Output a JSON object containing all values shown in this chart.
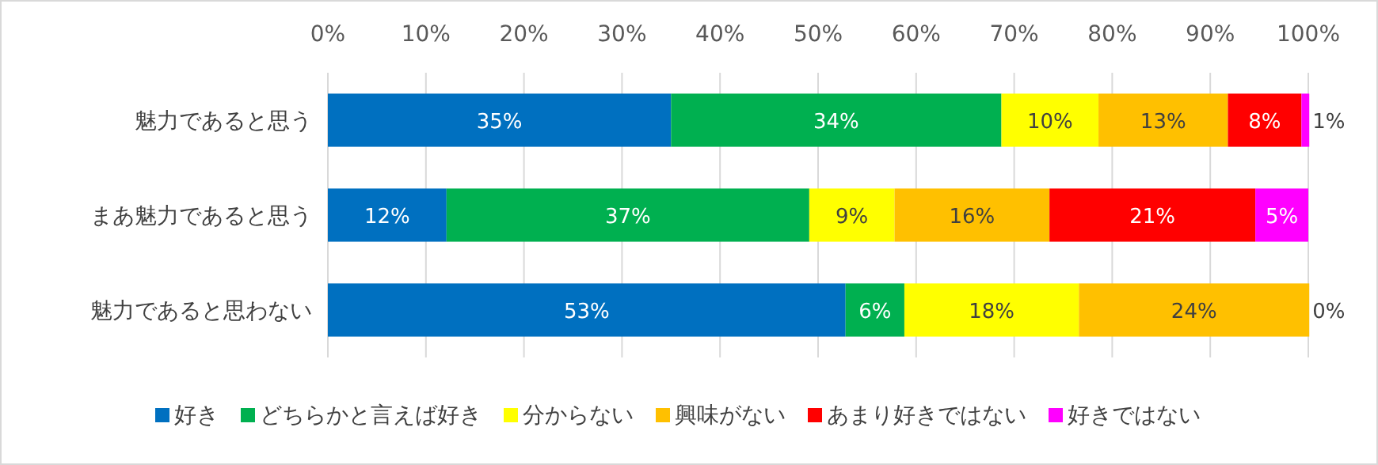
{
  "chart_data": {
    "type": "bar",
    "orientation": "horizontal",
    "stacked": true,
    "categories": [
      "魅力であると思う",
      "まあ魅力であると思う",
      "魅力であると思わない"
    ],
    "series": [
      {
        "name": "好き",
        "color": "#0070c0",
        "values": [
          35.0,
          12.1,
          52.8
        ],
        "value_labels": [
          "35%",
          "12%",
          "53%"
        ]
      },
      {
        "name": "どちらかと言えば好き",
        "color": "#00b050",
        "values": [
          33.7,
          37.0,
          6.0
        ],
        "value_labels": [
          "34%",
          "37%",
          "6%"
        ]
      },
      {
        "name": "分からない",
        "color": "#ffff00",
        "values": [
          9.9,
          8.7,
          17.8
        ],
        "value_labels": [
          "10%",
          "9%",
          "18%"
        ]
      },
      {
        "name": "興味がない",
        "color": "#ffc000",
        "values": [
          13.2,
          15.8,
          23.5
        ],
        "value_labels": [
          "13%",
          "16%",
          "24%"
        ]
      },
      {
        "name": "あまり好きではない",
        "color": "#ff0000",
        "values": [
          7.5,
          21.0,
          0
        ],
        "value_labels": [
          "8%",
          "21%",
          "0%"
        ]
      },
      {
        "name": "好きではない",
        "color": "#ff00ff",
        "values": [
          0.8,
          5.4,
          0
        ],
        "value_labels": [
          "1%",
          "5%",
          null
        ]
      }
    ],
    "xlim": [
      0,
      100
    ],
    "xticks": [
      {
        "value": 0,
        "label": "0%"
      },
      {
        "value": 10,
        "label": "10%"
      },
      {
        "value": 20,
        "label": "20%"
      },
      {
        "value": 30,
        "label": "30%"
      },
      {
        "value": 40,
        "label": "40%"
      },
      {
        "value": 50,
        "label": "50%"
      },
      {
        "value": 60,
        "label": "60%"
      },
      {
        "value": 70,
        "label": "70%"
      },
      {
        "value": 80,
        "label": "80%"
      },
      {
        "value": 90,
        "label": "90%"
      },
      {
        "value": 100,
        "label": "100%"
      }
    ],
    "grid": "x",
    "legend": "bottom"
  }
}
